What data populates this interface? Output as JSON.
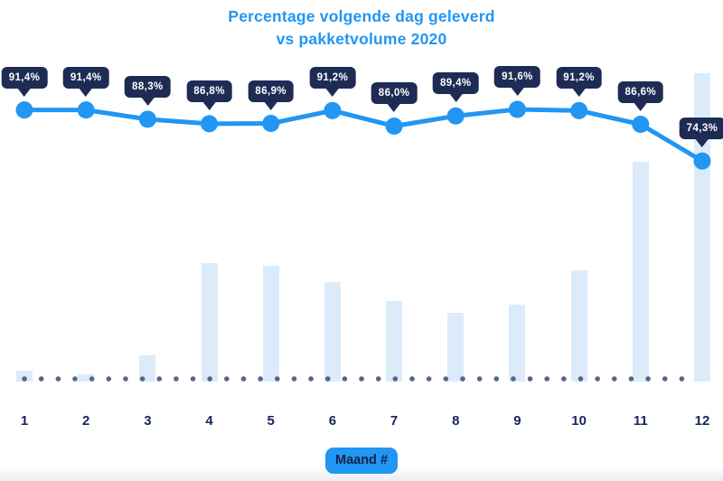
{
  "title": {
    "line1": "Percentage volgende dag geleverd",
    "line2": "vs pakketvolume 2020"
  },
  "x_axis_label": "Maand #",
  "colors": {
    "accent_blue": "#2196f3",
    "tooltip_navy": "#1e2c55",
    "bar_fill": "#dcebf9",
    "baseline_dot": "#54658e",
    "month_label_navy": "#16265a",
    "tooltip_text": "#ffffff"
  },
  "chart_data": {
    "type": "line+bar",
    "title": "Percentage volgende dag geleverd vs pakketvolume 2020",
    "categories": [
      "1",
      "2",
      "3",
      "4",
      "5",
      "6",
      "7",
      "8",
      "9",
      "10",
      "11",
      "12"
    ],
    "xlabel": "Maand #",
    "grid": "off",
    "legend": "none",
    "baseline_style": "dotted",
    "series": [
      {
        "name": "Percentage volgende dag geleverd",
        "type": "line",
        "unit": "%",
        "color": "#2196f3",
        "values": [
          91.4,
          91.4,
          88.3,
          86.8,
          86.9,
          91.2,
          86.0,
          89.4,
          91.6,
          91.2,
          86.6,
          74.3
        ],
        "labels": [
          "91,4%",
          "91,4%",
          "88,3%",
          "86,8%",
          "86,9%",
          "91,2%",
          "86,0%",
          "89,4%",
          "91,6%",
          "91,2%",
          "86,6%",
          "74,3%"
        ],
        "ylim_hint": [
          70,
          95
        ]
      },
      {
        "name": "Pakketvolume 2020",
        "type": "bar",
        "unit": "relative index (no value axis shown), Dec = 100",
        "color": "#dcebf9",
        "values": [
          3.5,
          2.3,
          8.5,
          38.4,
          37.5,
          32.3,
          26.1,
          22.3,
          24.9,
          36.1,
          71.3,
          100
        ]
      }
    ]
  }
}
